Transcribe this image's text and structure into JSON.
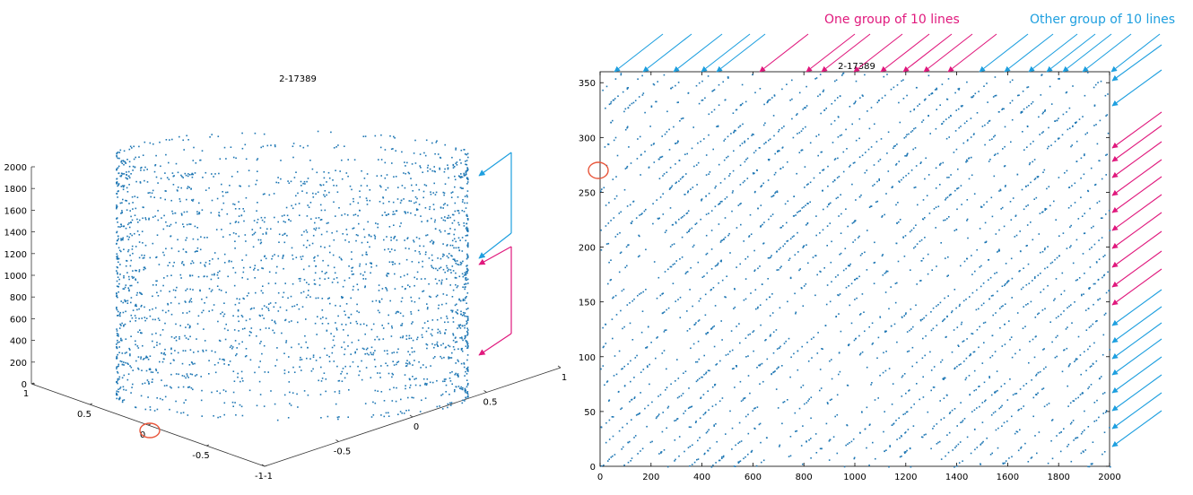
{
  "colors": {
    "points": "#1f77b4",
    "cyan_note": "#1e9fdf",
    "magenta_note": "#e0197d",
    "circle": "#e8553a",
    "axis": "#333333"
  },
  "annotations": {
    "magenta_label": "One group of 10 lines",
    "cyan_label": "Other group of 10 lines"
  },
  "chart_data": [
    {
      "type": "scatter",
      "projection": "3d",
      "title": "2-17389",
      "xlabel": "",
      "ylabel": "",
      "zlabel": "",
      "xlim": [
        -1,
        1
      ],
      "ylim": [
        -1,
        1
      ],
      "zlim": [
        0,
        2000
      ],
      "x_ticks": [
        "-1",
        "-0.5",
        "0",
        "0.5",
        "1"
      ],
      "y_ticks": [
        "-1",
        "-0.5",
        "0",
        "0.5",
        "1"
      ],
      "z_ticks": [
        "0",
        "200",
        "400",
        "600",
        "800",
        "1000",
        "1200",
        "1400",
        "1600",
        "1800",
        "2000"
      ],
      "grid": false,
      "point_generation": {
        "count": 2400,
        "rings": 20,
        "description": "points on a unit cylinder (cos theta, sin theta, z) arranged in helical rings"
      },
      "highlight": {
        "x": 1,
        "y": 0,
        "z": 0
      }
    },
    {
      "type": "scatter",
      "title": "2-17389",
      "xlabel": "",
      "ylabel": "",
      "xlim": [
        0,
        2000
      ],
      "ylim": [
        0,
        360
      ],
      "x_ticks": [
        "0",
        "200",
        "400",
        "600",
        "800",
        "1000",
        "1200",
        "1400",
        "1600",
        "1800",
        "2000"
      ],
      "y_ticks": [
        "0",
        "50",
        "100",
        "150",
        "200",
        "250",
        "300",
        "350"
      ],
      "grid": false,
      "point_generation": {
        "count": 2400,
        "slope_deg_per_unit": 0.207,
        "lines": 20
      },
      "highlight": {
        "x": 0,
        "y": 270
      }
    }
  ]
}
